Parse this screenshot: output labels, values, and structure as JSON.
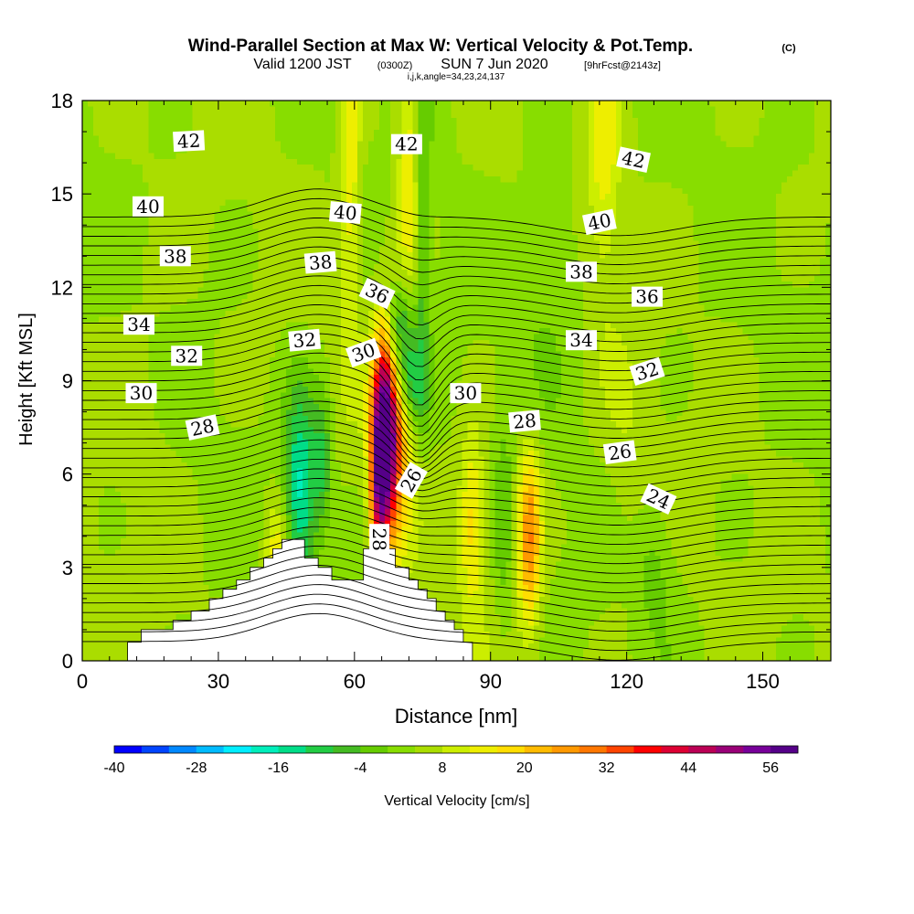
{
  "chart_data": {
    "type": "heatmap",
    "title": "Wind-Parallel Section at Max W: Vertical Velocity & Pot.Temp.",
    "title_mark": "(C)",
    "subtitle_valid": "Valid 1200 JST",
    "subtitle_utc": "(0300Z)",
    "subtitle_date": "SUN 7 Jun 2020",
    "subtitle_fcst": "[9hrFcst@2143z]",
    "subtitle_indices": "i,j,k,angle=34,23,24,137",
    "xlabel": "Distance [nm]",
    "ylabel": "Height [Kft MSL]",
    "xlim": [
      0,
      165
    ],
    "ylim": [
      0,
      18
    ],
    "xticks": [
      "0",
      "30",
      "60",
      "90",
      "120",
      "150"
    ],
    "yticks": [
      "0",
      "3",
      "6",
      "9",
      "12",
      "15",
      "18"
    ],
    "colorbar": {
      "label": "Vertical Velocity [cm/s]",
      "min": -40,
      "max": 60,
      "step": 4,
      "tick_labels": [
        "-40",
        "-28",
        "-16",
        "-4",
        "8",
        "20",
        "32",
        "44",
        "56"
      ],
      "colors": [
        "#0000ff",
        "#0044ff",
        "#0088ff",
        "#00bbff",
        "#00eeff",
        "#00eebb",
        "#00dd88",
        "#22cc44",
        "#44bb22",
        "#66cc00",
        "#88dd00",
        "#aadd00",
        "#ccee00",
        "#eeee00",
        "#ffdd00",
        "#ffbb00",
        "#ff9900",
        "#ff7700",
        "#ff4400",
        "#ff0000",
        "#dd0033",
        "#bb0055",
        "#990077",
        "#770099",
        "#550088"
      ]
    },
    "terrain": [
      [
        0,
        0
      ],
      [
        10,
        0
      ],
      [
        10,
        0.6
      ],
      [
        13,
        0.6
      ],
      [
        13,
        1
      ],
      [
        20,
        1
      ],
      [
        20,
        1.3
      ],
      [
        24,
        1.3
      ],
      [
        24,
        1.6
      ],
      [
        28,
        1.6
      ],
      [
        28,
        2
      ],
      [
        31,
        2
      ],
      [
        31,
        2.3
      ],
      [
        34,
        2.3
      ],
      [
        34,
        2.6
      ],
      [
        37,
        2.6
      ],
      [
        37,
        3
      ],
      [
        40,
        3
      ],
      [
        40,
        3.3
      ],
      [
        42,
        3.3
      ],
      [
        42,
        3.6
      ],
      [
        44,
        3.6
      ],
      [
        44,
        3.9
      ],
      [
        49,
        3.9
      ],
      [
        49,
        3.3
      ],
      [
        52,
        3.3
      ],
      [
        52,
        3
      ],
      [
        55,
        3
      ],
      [
        55,
        2.6
      ],
      [
        62,
        2.6
      ],
      [
        62,
        3.6
      ],
      [
        69,
        3.6
      ],
      [
        69,
        3
      ],
      [
        72,
        3
      ],
      [
        72,
        2.6
      ],
      [
        74,
        2.6
      ],
      [
        74,
        2.3
      ],
      [
        76,
        2.3
      ],
      [
        76,
        2
      ],
      [
        78,
        2
      ],
      [
        78,
        1.6
      ],
      [
        80,
        1.6
      ],
      [
        80,
        1.3
      ],
      [
        82,
        1.3
      ],
      [
        82,
        1
      ],
      [
        84,
        1
      ],
      [
        84,
        0.6
      ],
      [
        86,
        0.6
      ],
      [
        86,
        0
      ]
    ],
    "w_cells": [
      {
        "x": 66.5,
        "y": 7.0,
        "sx": 1.8,
        "sy": 2.2,
        "w": 52
      },
      {
        "x": 69.0,
        "y": 7.8,
        "sx": 2.6,
        "sy": 2.8,
        "w": 22
      },
      {
        "x": 65.0,
        "y": 5.5,
        "sx": 1.2,
        "sy": 1.8,
        "w": 18
      },
      {
        "x": 48.0,
        "y": 5.5,
        "sx": 2.5,
        "sy": 2.2,
        "w": -22
      },
      {
        "x": 53.0,
        "y": 6.5,
        "sx": 1.5,
        "sy": 1.5,
        "w": -12
      },
      {
        "x": 70.0,
        "y": 10.5,
        "sx": 2.2,
        "sy": 1.3,
        "w": -24
      },
      {
        "x": 72.5,
        "y": 8.8,
        "sx": 2.2,
        "sy": 1.0,
        "w": -14
      },
      {
        "x": 75.0,
        "y": 14.0,
        "sx": 1.2,
        "sy": 4.5,
        "w": -10
      },
      {
        "x": 98.5,
        "y": 4.0,
        "sx": 1.8,
        "sy": 2.0,
        "w": 24
      },
      {
        "x": 86.0,
        "y": 4.5,
        "sx": 2.0,
        "sy": 2.0,
        "w": 14
      },
      {
        "x": 93.0,
        "y": 4.2,
        "sx": 1.5,
        "sy": 2.5,
        "w": -6
      },
      {
        "x": 126.0,
        "y": 3.2,
        "sx": 3.0,
        "sy": 1.5,
        "w": -6
      },
      {
        "x": 72.0,
        "y": 16.0,
        "sx": 1.8,
        "sy": 3.5,
        "w": 12
      },
      {
        "x": 59.0,
        "y": 16.0,
        "sx": 1.5,
        "sy": 4.0,
        "w": 12
      },
      {
        "x": 115.0,
        "y": 16.5,
        "sx": 2.5,
        "sy": 3.0,
        "w": 10
      },
      {
        "x": 103.0,
        "y": 13.0,
        "sx": 5.0,
        "sy": 3.0,
        "w": -4
      },
      {
        "x": 43.0,
        "y": 3.0,
        "sx": 2.0,
        "sy": 1.5,
        "w": 14
      },
      {
        "x": 14.0,
        "y": 9.0,
        "sx": 6.0,
        "sy": 4.0,
        "w": 2
      },
      {
        "x": 140.0,
        "y": 13.0,
        "sx": 12.0,
        "sy": 4.0,
        "w": 0
      },
      {
        "x": 120.0,
        "y": 6.0,
        "sx": 4.0,
        "sy": 3.0,
        "w": 3
      }
    ],
    "isentrope_labels": [
      {
        "text": "42",
        "x": 23.5,
        "y": 16.7,
        "rot": -3
      },
      {
        "text": "42",
        "x": 71.5,
        "y": 16.6,
        "rot": 0
      },
      {
        "text": "42",
        "x": 121.5,
        "y": 16.1,
        "rot": 12
      },
      {
        "text": "40",
        "x": 14.5,
        "y": 14.6,
        "rot": 0
      },
      {
        "text": "40",
        "x": 58.0,
        "y": 14.4,
        "rot": 5
      },
      {
        "text": "40",
        "x": 114.0,
        "y": 14.1,
        "rot": -12
      },
      {
        "text": "38",
        "x": 20.5,
        "y": 13.0,
        "rot": 0
      },
      {
        "text": "38",
        "x": 52.5,
        "y": 12.8,
        "rot": -5
      },
      {
        "text": "38",
        "x": 110.0,
        "y": 12.5,
        "rot": 0
      },
      {
        "text": "36",
        "x": 65.0,
        "y": 11.8,
        "rot": 25
      },
      {
        "text": "36",
        "x": 124.5,
        "y": 11.7,
        "rot": 0
      },
      {
        "text": "34",
        "x": 12.5,
        "y": 10.8,
        "rot": 0
      },
      {
        "text": "34",
        "x": 110.0,
        "y": 10.3,
        "rot": 0
      },
      {
        "text": "32",
        "x": 23.0,
        "y": 9.8,
        "rot": 0
      },
      {
        "text": "32",
        "x": 49.0,
        "y": 10.3,
        "rot": -5
      },
      {
        "text": "32",
        "x": 124.5,
        "y": 9.3,
        "rot": -18
      },
      {
        "text": "30",
        "x": 13.0,
        "y": 8.6,
        "rot": 0
      },
      {
        "text": "30",
        "x": 62.0,
        "y": 9.9,
        "rot": -20
      },
      {
        "text": "30",
        "x": 84.5,
        "y": 8.6,
        "rot": 0
      },
      {
        "text": "28",
        "x": 26.5,
        "y": 7.5,
        "rot": -12
      },
      {
        "text": "28",
        "x": 97.5,
        "y": 7.7,
        "rot": -5
      },
      {
        "text": "28",
        "x": 65.5,
        "y": 3.9,
        "rot": 90
      },
      {
        "text": "26",
        "x": 72.5,
        "y": 5.8,
        "rot": -60
      },
      {
        "text": "26",
        "x": 118.5,
        "y": 6.7,
        "rot": -8
      },
      {
        "text": "24",
        "x": 127.0,
        "y": 5.2,
        "rot": 25
      }
    ]
  }
}
